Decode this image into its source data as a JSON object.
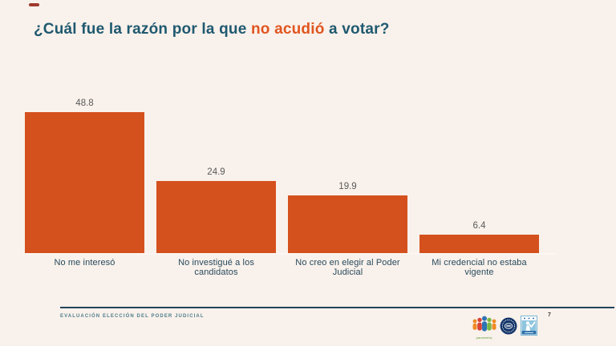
{
  "slide": {
    "background_color": "#F9F1EB",
    "accent_dash_color": "#A0392E",
    "title": {
      "prefix": "¿Cuál fue la razón por la que ",
      "highlight": "no acudió",
      "suffix": " a votar?",
      "text_color": "#1F5970",
      "highlight_color": "#E0551F"
    }
  },
  "chart_data": {
    "type": "bar",
    "title": "¿Cuál fue la razón por la que no acudió a votar?",
    "categories": [
      "No me interesó",
      "No investigué a los candidatos",
      "No creo en elegir al Poder Judicial",
      "Mi credencial no estaba vigente"
    ],
    "values": [
      48.8,
      24.9,
      19.9,
      6.4
    ],
    "value_labels": [
      "48.8",
      "24.9",
      "19.9",
      "6.4"
    ],
    "bar_color": "#D4511E",
    "value_label_color": "#595959",
    "category_label_color": "#274A5D",
    "xlabel": "",
    "ylabel": "",
    "ylim": [
      0,
      55
    ],
    "grid": false,
    "legend": false,
    "data_labels_position": "above-bar"
  },
  "footer": {
    "label": "EVALUACIÓN ELECCIÓN DEL PODER JUDICIAL",
    "page_number": "7",
    "line_color": "#22465A",
    "logos": [
      {
        "name": "parametria-logo",
        "caption": "parametría,"
      },
      {
        "name": "seal-logo",
        "caption": ""
      },
      {
        "name": "voter-check-logo",
        "caption": ""
      }
    ]
  }
}
